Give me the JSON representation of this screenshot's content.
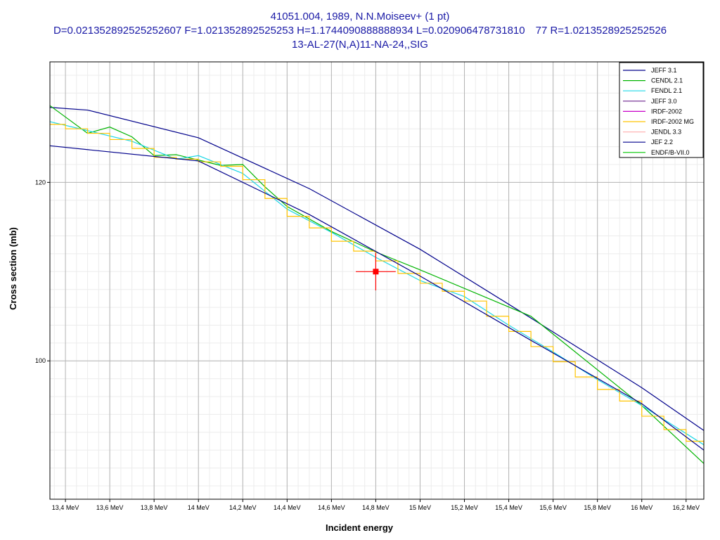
{
  "chart_data": {
    "type": "line",
    "title_lines": [
      "41051.004, 1989, N.N.Moiseev+ (1 pt)",
      "D=0.021352892525252607 F=1.021352892525253 H=1.1744090888888934 L=0.020906478731810 77 R=1.0213528925252526",
      "13-AL-27(N,A)11-NA-24,,SIG"
    ],
    "xlabel": "Incident energy",
    "ylabel": "Cross section (mb)",
    "xlim": [
      13.33,
      16.28
    ],
    "ylim": [
      84.5,
      133.5
    ],
    "x_ticks": [
      {
        "value": 13.4,
        "label": "13,4 MeV"
      },
      {
        "value": 13.6,
        "label": "13,6 MeV"
      },
      {
        "value": 13.8,
        "label": "13,8 MeV"
      },
      {
        "value": 14.0,
        "label": "14 MeV"
      },
      {
        "value": 14.2,
        "label": "14,2 MeV"
      },
      {
        "value": 14.4,
        "label": "14,4 MeV"
      },
      {
        "value": 14.6,
        "label": "14,6 MeV"
      },
      {
        "value": 14.8,
        "label": "14,8 MeV"
      },
      {
        "value": 15.0,
        "label": "15 MeV"
      },
      {
        "value": 15.2,
        "label": "15,2 MeV"
      },
      {
        "value": 15.4,
        "label": "15,4 MeV"
      },
      {
        "value": 15.6,
        "label": "15,6 MeV"
      },
      {
        "value": 15.8,
        "label": "15,8 MeV"
      },
      {
        "value": 16.0,
        "label": "16 MeV"
      },
      {
        "value": 16.2,
        "label": "16,2 MeV"
      }
    ],
    "y_ticks": [
      {
        "value": 100,
        "label": "100"
      },
      {
        "value": 120,
        "label": "120"
      }
    ],
    "grid": true,
    "legend_position": "top-right",
    "series": [
      {
        "name": "JEFF 3.1",
        "color": "#00008b",
        "x": [
          13.33,
          13.5,
          14.0,
          14.5,
          15.0,
          15.5,
          16.0,
          16.28
        ],
        "y": [
          128.4,
          128.1,
          125.0,
          119.3,
          112.5,
          104.8,
          97.0,
          92.2
        ]
      },
      {
        "name": "CENDL 2.1",
        "color": "#00b400",
        "x": [
          13.33,
          13.5,
          13.6,
          13.7,
          13.8,
          13.9,
          14.0,
          14.1,
          14.2,
          14.3,
          14.4,
          14.6,
          14.8,
          15.0,
          15.5,
          16.0,
          16.28
        ],
        "y": [
          128.6,
          125.5,
          126.2,
          125.1,
          123.0,
          123.1,
          122.5,
          121.9,
          122.0,
          119.5,
          117.3,
          114.5,
          112.2,
          110.2,
          105.0,
          95.0,
          88.5
        ]
      },
      {
        "name": "FENDL 2.1",
        "color": "#1ed7e6",
        "x": [
          13.33,
          13.5,
          13.7,
          13.9,
          14.0,
          14.2,
          14.4,
          14.6,
          14.8,
          15.0,
          15.2,
          15.4,
          15.6,
          15.8,
          16.0,
          16.28
        ],
        "y": [
          126.8,
          125.8,
          124.6,
          122.6,
          123.0,
          121.0,
          117.0,
          114.4,
          111.6,
          109.0,
          107.2,
          104.0,
          101.0,
          97.9,
          95.0,
          90.6
        ]
      },
      {
        "name": "JEFF 3.0",
        "color": "#6b238e",
        "x": [],
        "y": []
      },
      {
        "name": "IRDF-2002",
        "color": "#c800c8",
        "x": [],
        "y": []
      },
      {
        "name": "IRDF-2002 MG",
        "color": "#ffc400",
        "x": [
          13.33,
          13.4,
          13.5,
          13.6,
          13.7,
          13.8,
          13.9,
          14.0,
          14.1,
          14.2,
          14.3,
          14.4,
          14.5,
          14.6,
          14.7,
          14.8,
          14.9,
          15.0,
          15.1,
          15.2,
          15.3,
          15.4,
          15.5,
          15.6,
          15.7,
          15.8,
          15.9,
          16.0,
          16.1,
          16.2,
          16.28
        ],
        "y": [
          126.5,
          126.0,
          125.5,
          124.8,
          123.8,
          122.8,
          122.6,
          122.3,
          121.8,
          120.3,
          118.2,
          116.2,
          114.9,
          113.4,
          112.3,
          111.2,
          109.8,
          108.7,
          107.8,
          106.7,
          105.0,
          103.3,
          101.6,
          99.9,
          98.2,
          96.8,
          95.5,
          93.8,
          92.3,
          91.0,
          90.5
        ]
      },
      {
        "name": "JENDL 3.3",
        "color": "#ffb4b4",
        "x": [],
        "y": []
      },
      {
        "name": "JEF 2.2",
        "color": "#00008b",
        "x": [
          13.33,
          14.0,
          14.5,
          15.0,
          15.5,
          16.0,
          16.28
        ],
        "y": [
          124.1,
          122.4,
          116.4,
          109.5,
          102.3,
          95.2,
          90.0
        ]
      },
      {
        "name": "ENDF/B-VII.0",
        "color": "#00c800",
        "x": [],
        "y": []
      }
    ],
    "experimental_points": [
      {
        "x": 14.8,
        "y": 110.0,
        "xerr": 0.09,
        "yerr": 2.1,
        "color": "#ff0000"
      }
    ]
  }
}
